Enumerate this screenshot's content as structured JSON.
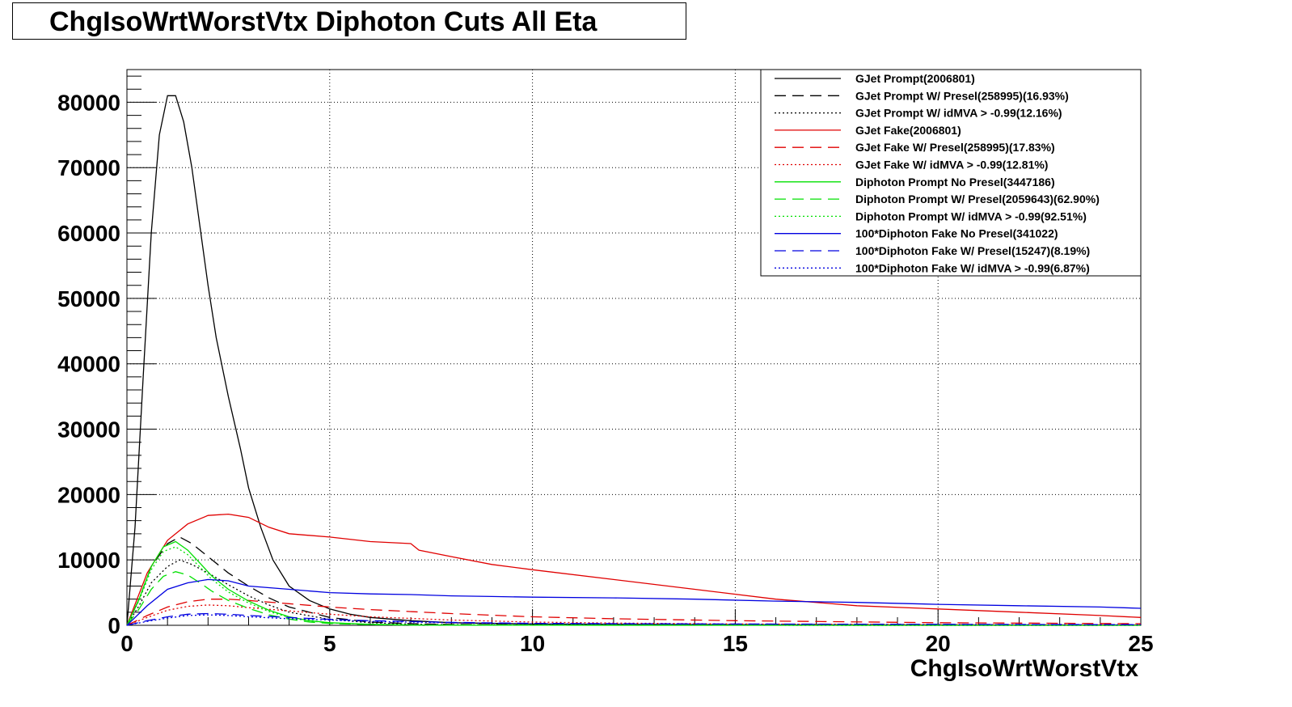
{
  "title": "ChgIsoWrtWorstVtx Diphoton Cuts All Eta",
  "colors": {
    "black": "#000000",
    "red": "#e00000",
    "green": "#00e000",
    "blue": "#0000e0"
  },
  "chart_data": {
    "type": "line",
    "xlabel": "ChgIsoWrtWorstVtx",
    "ylabel": "",
    "xlim": [
      0,
      25
    ],
    "ylim": [
      0,
      85000
    ],
    "x_ticks": [
      "0",
      "5",
      "10",
      "15",
      "20",
      "25"
    ],
    "y_ticks": [
      "0",
      "10000",
      "20000",
      "30000",
      "40000",
      "50000",
      "60000",
      "70000",
      "80000"
    ],
    "grid": true,
    "legend_position": "top-right",
    "series": [
      {
        "name": "GJet Prompt(2006801)",
        "color": "#000000",
        "dash": "solid",
        "x": [
          0,
          0.2,
          0.4,
          0.6,
          0.8,
          1.0,
          1.2,
          1.4,
          1.6,
          1.8,
          2.0,
          2.2,
          2.5,
          2.8,
          3.0,
          3.3,
          3.6,
          4.0,
          4.5,
          5.0,
          5.5,
          6.0,
          7.0,
          8.0,
          10.0,
          15.0,
          20.0,
          25.0
        ],
        "y": [
          0,
          15000,
          38000,
          60000,
          75000,
          81000,
          81000,
          77000,
          70000,
          61000,
          52000,
          44000,
          35000,
          27000,
          21000,
          15000,
          10000,
          6000,
          3800,
          2500,
          1700,
          1200,
          700,
          400,
          200,
          80,
          40,
          20
        ]
      },
      {
        "name": "GJet Prompt W/ Presel(258995)(16.93%)",
        "color": "#000000",
        "dash": "long",
        "x": [
          0,
          0.3,
          0.6,
          1.0,
          1.3,
          1.6,
          2.0,
          2.5,
          3.0,
          3.5,
          4.0,
          5.0,
          6.0,
          7.0,
          8.0,
          10.0,
          15.0,
          25.0
        ],
        "y": [
          0,
          4000,
          9000,
          12500,
          13500,
          12500,
          10500,
          8000,
          6000,
          4200,
          2800,
          1200,
          500,
          250,
          120,
          50,
          20,
          10
        ]
      },
      {
        "name": "GJet Prompt W/ idMVA > -0.99(12.16%)",
        "color": "#000000",
        "dash": "dot",
        "x": [
          0,
          0.3,
          0.6,
          1.0,
          1.3,
          1.6,
          2.0,
          2.5,
          3.0,
          3.5,
          4.0,
          5.0,
          6.0,
          7.0,
          8.0,
          10.0,
          15.0,
          25.0
        ],
        "y": [
          0,
          3000,
          6500,
          9000,
          10000,
          9300,
          8000,
          6200,
          4500,
          3100,
          2000,
          900,
          400,
          180,
          90,
          40,
          15,
          5
        ]
      },
      {
        "name": "GJet Fake(2006801)",
        "color": "#e00000",
        "dash": "solid",
        "x": [
          0,
          0.5,
          1.0,
          1.5,
          2.0,
          2.5,
          3.0,
          3.5,
          4.0,
          5.0,
          6.0,
          7.0,
          7.2,
          8.0,
          9.0,
          10.0,
          12.0,
          14.0,
          16.0,
          18.0,
          20.0,
          22.0,
          24.0,
          25.0
        ],
        "y": [
          0,
          8000,
          13000,
          15500,
          16800,
          17000,
          16500,
          15000,
          14000,
          13500,
          12800,
          12500,
          11500,
          10500,
          9300,
          8500,
          7000,
          5500,
          4000,
          3000,
          2500,
          2000,
          1500,
          1200
        ]
      },
      {
        "name": "GJet Fake W/ Presel(258995)(17.83%)",
        "color": "#e00000",
        "dash": "long",
        "x": [
          0,
          0.5,
          1.0,
          1.5,
          2.0,
          2.5,
          3.0,
          4.0,
          5.0,
          6.0,
          8.0,
          10.0,
          12.0,
          15.0,
          20.0,
          25.0
        ],
        "y": [
          0,
          1500,
          2800,
          3600,
          4000,
          4000,
          3800,
          3300,
          2800,
          2400,
          1800,
          1300,
          1000,
          700,
          400,
          250
        ]
      },
      {
        "name": "GJet Fake W/ idMVA > -0.99(12.81%)",
        "color": "#e00000",
        "dash": "dot",
        "x": [
          0,
          0.5,
          1.0,
          1.5,
          2.0,
          2.5,
          3.0,
          4.0,
          5.0,
          6.0,
          8.0,
          10.0,
          12.0,
          15.0,
          20.0,
          25.0
        ],
        "y": [
          0,
          1200,
          2300,
          2900,
          3100,
          3000,
          2700,
          2200,
          1700,
          1300,
          800,
          500,
          350,
          200,
          100,
          60
        ]
      },
      {
        "name": "Diphoton Prompt No Presel(3447186)",
        "color": "#00e000",
        "dash": "solid",
        "x": [
          0,
          0.3,
          0.6,
          0.9,
          1.2,
          1.5,
          1.8,
          2.1,
          2.5,
          3.0,
          3.5,
          4.0,
          4.5,
          5.0,
          6.0,
          7.0,
          8.0,
          10.0,
          25.0
        ],
        "y": [
          0,
          4000,
          9000,
          12000,
          12800,
          11500,
          9500,
          7500,
          5500,
          3700,
          2300,
          1300,
          700,
          400,
          150,
          60,
          30,
          10,
          0
        ]
      },
      {
        "name": "Diphoton Prompt W/ Presel(2059643)(62.90%)",
        "color": "#00e000",
        "dash": "long",
        "x": [
          0,
          0.3,
          0.6,
          0.9,
          1.2,
          1.5,
          1.8,
          2.1,
          2.5,
          3.0,
          3.5,
          4.0,
          4.5,
          5.0,
          6.0,
          7.0,
          8.0,
          25.0
        ],
        "y": [
          0,
          2500,
          5500,
          7500,
          8200,
          7700,
          6500,
          5200,
          3800,
          2600,
          1600,
          950,
          500,
          280,
          100,
          40,
          20,
          0
        ]
      },
      {
        "name": "Diphoton Prompt W/ idMVA > -0.99(92.51%)",
        "color": "#00e000",
        "dash": "dot",
        "x": [
          0,
          0.3,
          0.6,
          0.9,
          1.2,
          1.5,
          1.8,
          2.1,
          2.5,
          3.0,
          3.5,
          4.0,
          4.5,
          5.0,
          6.0,
          7.0,
          8.0,
          25.0
        ],
        "y": [
          0,
          3800,
          8500,
          11300,
          12000,
          10800,
          8900,
          7000,
          5100,
          3400,
          2100,
          1200,
          650,
          370,
          140,
          55,
          25,
          0
        ]
      },
      {
        "name": "100*Diphoton Fake No Presel(341022)",
        "color": "#0000e0",
        "dash": "solid",
        "x": [
          0,
          0.5,
          1.0,
          1.5,
          2.0,
          2.5,
          3.0,
          4.0,
          5.0,
          6.0,
          7.0,
          8.0,
          9.0,
          10.0,
          12.0,
          14.0,
          16.0,
          18.0,
          20.0,
          22.0,
          24.0,
          25.0
        ],
        "y": [
          0,
          3000,
          5500,
          6500,
          7000,
          6800,
          6000,
          5500,
          5000,
          4800,
          4700,
          4500,
          4400,
          4300,
          4200,
          4000,
          3700,
          3500,
          3200,
          3000,
          2800,
          2600
        ]
      },
      {
        "name": "100*Diphoton Fake W/ Presel(15247)(8.19%)",
        "color": "#0000e0",
        "dash": "long",
        "x": [
          0,
          0.5,
          1.0,
          1.5,
          2.0,
          2.5,
          3.0,
          4.0,
          5.0,
          6.0,
          8.0,
          10.0,
          12.0,
          15.0,
          20.0,
          25.0
        ],
        "y": [
          0,
          700,
          1300,
          1700,
          1800,
          1700,
          1500,
          1200,
          900,
          700,
          450,
          300,
          250,
          200,
          150,
          100
        ]
      },
      {
        "name": "100*Diphoton Fake W/ idMVA > -0.99(6.87%)",
        "color": "#0000e0",
        "dash": "dot",
        "x": [
          0,
          0.5,
          1.0,
          1.5,
          2.0,
          2.5,
          3.0,
          4.0,
          5.0,
          6.0,
          8.0,
          10.0,
          12.0,
          15.0,
          20.0,
          25.0
        ],
        "y": [
          0,
          600,
          1100,
          1500,
          1600,
          1500,
          1300,
          1000,
          800,
          600,
          380,
          250,
          200,
          160,
          120,
          80
        ]
      }
    ]
  }
}
